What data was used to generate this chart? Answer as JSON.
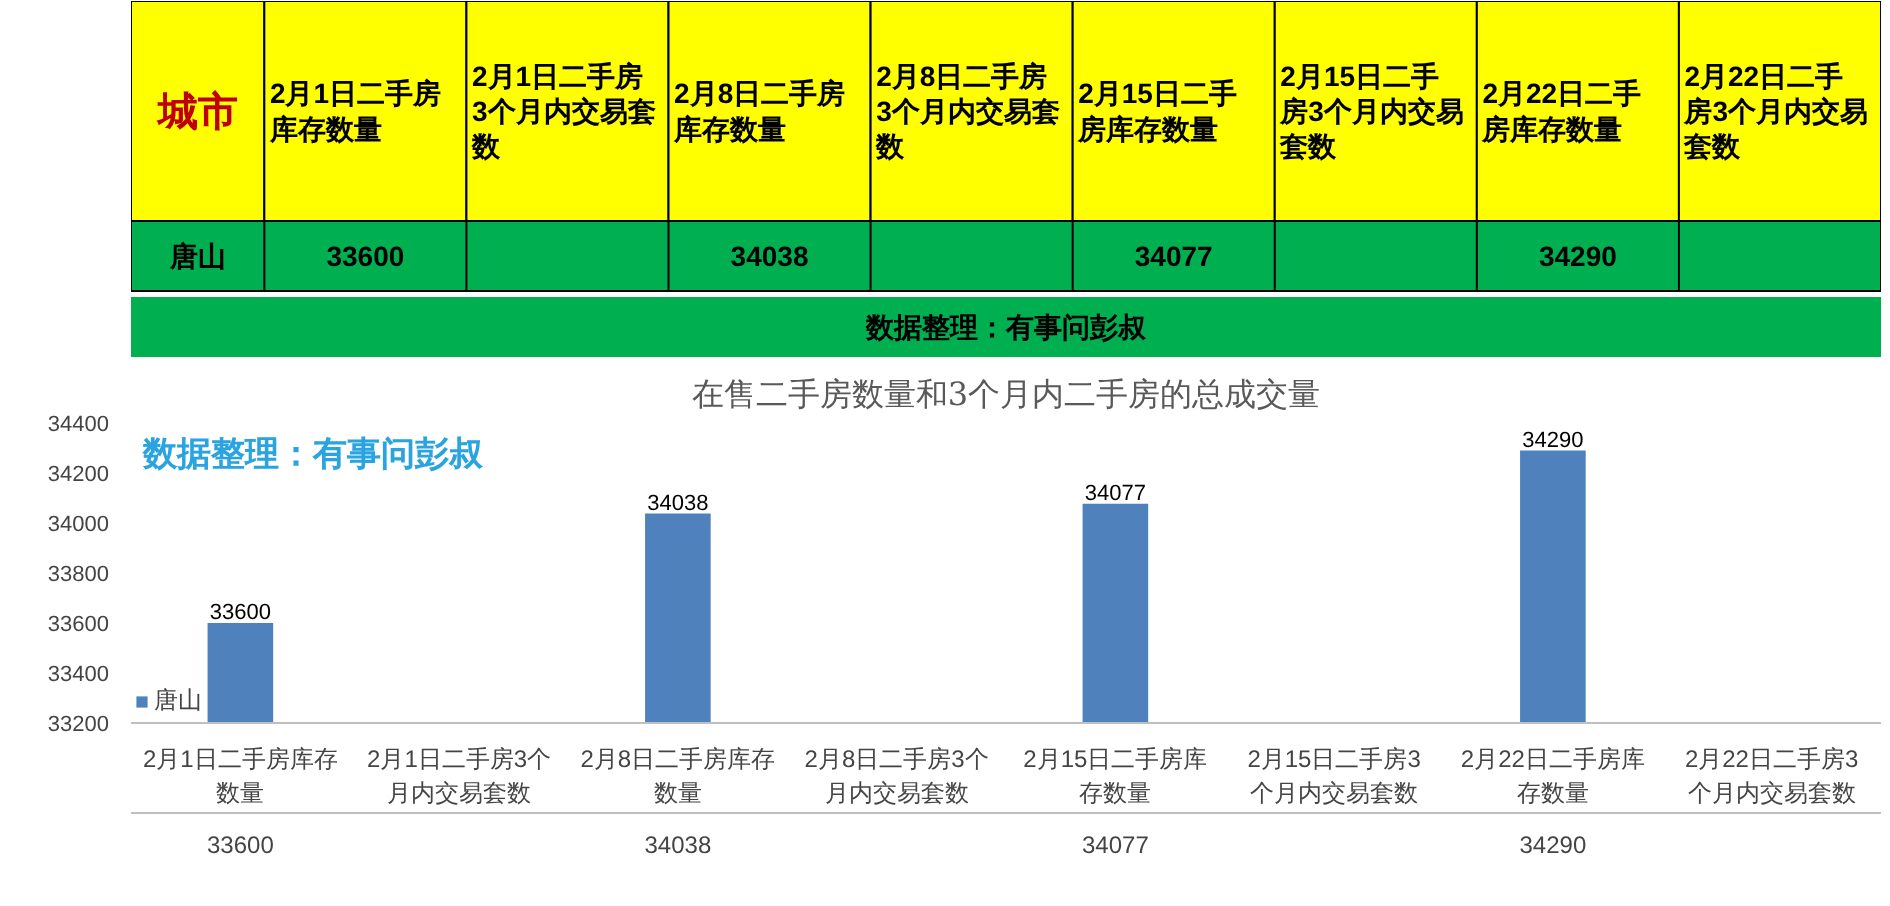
{
  "chart_data": [
    {
      "type": "other",
      "ylabel": "城市",
      "categories": [
        "2月1日二手房库存数量",
        "2月1日二手房3个月内交易套数",
        "2月8日二手房库存数量",
        "2月8日二手房3个月内交易套数",
        "2月15日二手房库存数量",
        "2月15日二手房3个月内交易套数",
        "2月22日二手房库存数量",
        "2月22日二手房3个月内交易套数"
      ],
      "y_categories": [
        "唐山"
      ],
      "cell_labels": [
        [
          "33600",
          null,
          "34038",
          null,
          "34077",
          null,
          "34290",
          null
        ]
      ],
      "annotations": [
        "数据整理：有事问彭叔"
      ]
    },
    {
      "type": "bar",
      "title": "在售二手房数量和3个月内二手房的总成交量",
      "annotations": [
        "数据整理：有事问彭叔"
      ],
      "categories": [
        "2月1日二手房库存数量",
        "2月1日二手房3个月内交易套数",
        "2月8日二手房库存数量",
        "2月8日二手房3个月内交易套数",
        "2月15日二手房库存数量",
        "2月15日二手房3个月内交易套数",
        "2月22日二手房库存数量",
        "2月22日二手房3个月内交易套数"
      ],
      "series": [
        {
          "name": "唐山",
          "color": "#4f81bd",
          "values": [
            33600,
            null,
            34038,
            null,
            34077,
            null,
            34290,
            null
          ],
          "value_labels": [
            "33600",
            null,
            "34038",
            null,
            "34077",
            null,
            "34290",
            null
          ]
        }
      ],
      "ylim": [
        33200,
        34400
      ],
      "yticks": [
        33200,
        33400,
        33600,
        33800,
        34000,
        34200,
        34400
      ],
      "data_labels": true,
      "legend": "bottom"
    }
  ]
}
